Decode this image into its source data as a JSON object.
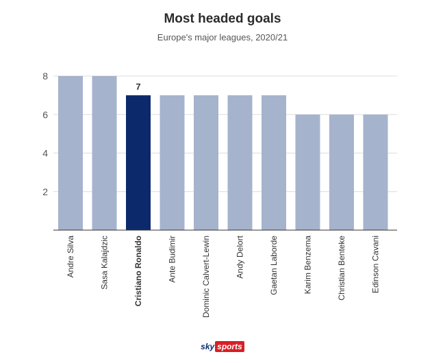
{
  "header": {
    "title": "Most headed goals",
    "subtitle": "Europe's major leagues, 2020/21"
  },
  "logo": {
    "sky": "sky",
    "sports": "sports"
  },
  "colors": {
    "bar": "#a6b3cd",
    "highlight": "#0c2a6b",
    "grid": "#dcdcdc",
    "axis": "#333333",
    "tick_text": "#555555"
  },
  "chart_data": {
    "type": "bar",
    "categories": [
      "Andre Silva",
      "Sasa Kalajdzic",
      "Cristiano Ronaldo",
      "Ante Budimir",
      "Dominic Calvert-Lewin",
      "Andy Delort",
      "Gaetan Laborde",
      "Karim Benzema",
      "Christian Benteke",
      "Edinson Cavani"
    ],
    "values": [
      8,
      8,
      7,
      7,
      7,
      7,
      7,
      6,
      6,
      6
    ],
    "highlight_index": 2,
    "highlight_label": "7",
    "title": "Most headed goals",
    "subtitle": "Europe's major leagues, 2020/21",
    "xlabel": "",
    "ylabel": "",
    "ylim": [
      0,
      8
    ],
    "yticks": [
      2,
      4,
      6,
      8
    ],
    "grid": true
  }
}
